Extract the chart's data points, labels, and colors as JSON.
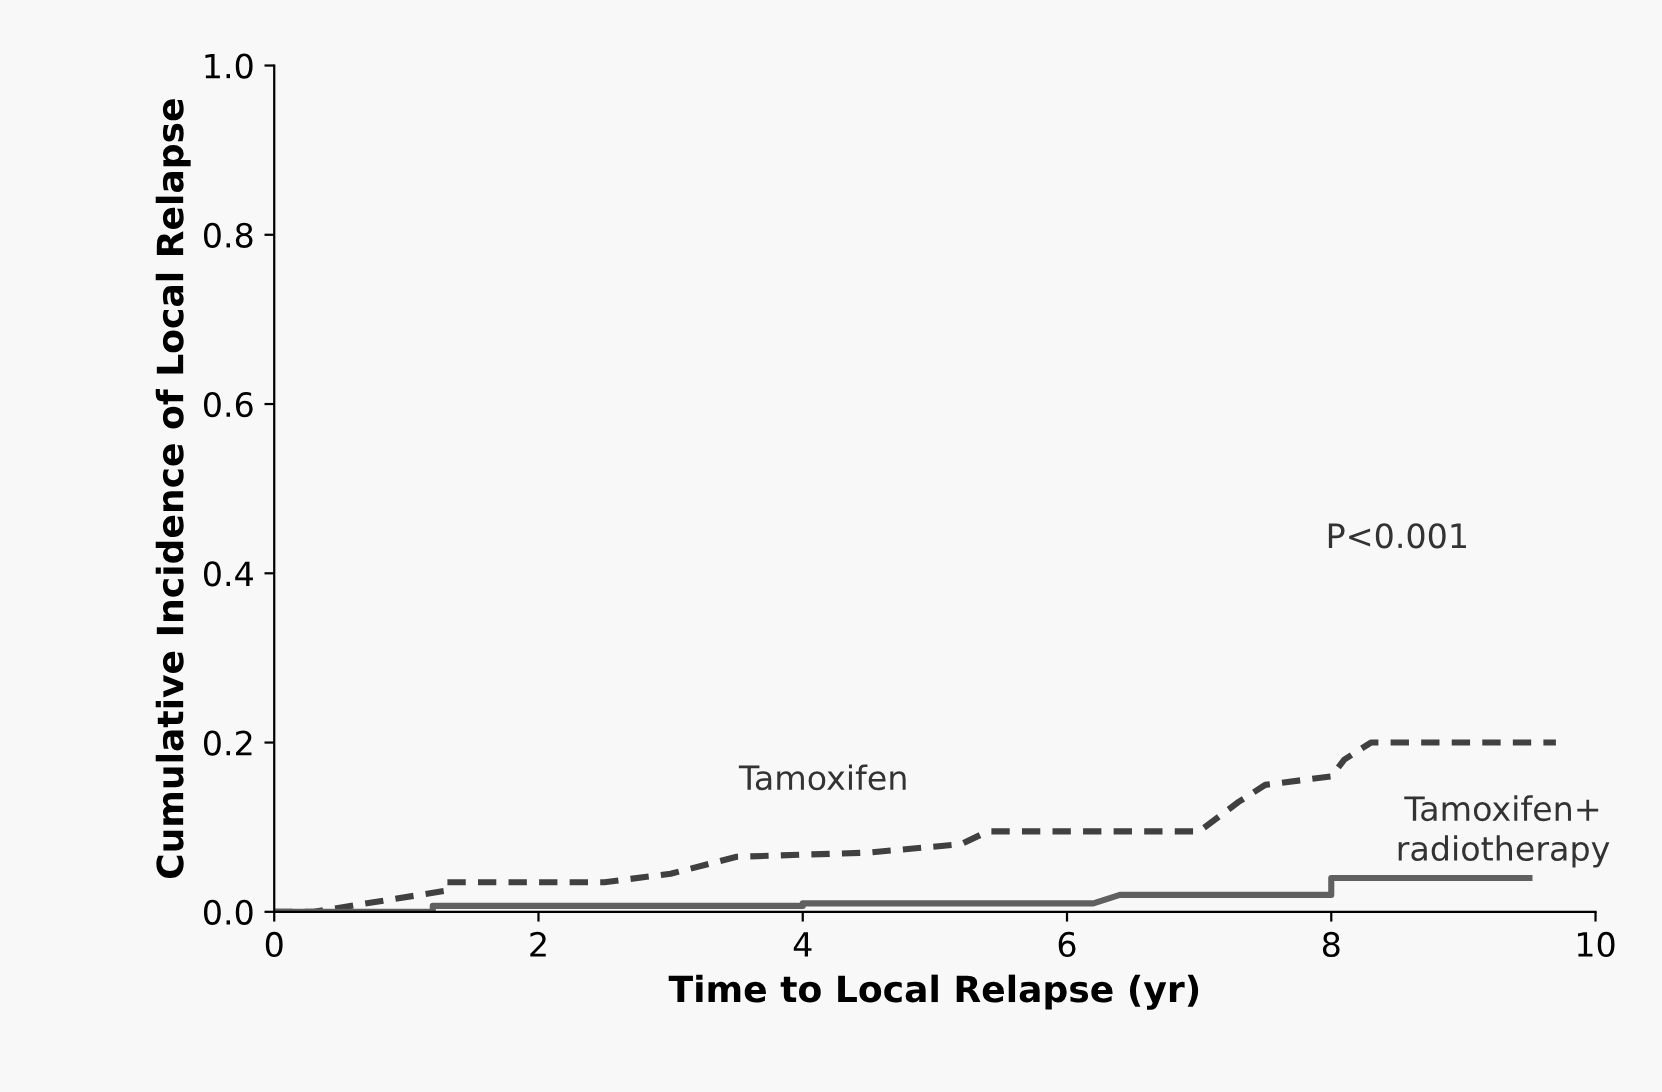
{
  "chart_data": {
    "type": "line",
    "xlabel": "Time to Local Relapse (yr)",
    "ylabel": "Cumulative Incidence of Local Relapse",
    "xlim": [
      0,
      10
    ],
    "ylim": [
      0,
      1.0
    ],
    "xticks": [
      0,
      2,
      4,
      6,
      8,
      10
    ],
    "yticks": [
      {
        "value": 0,
        "label": "0.0"
      },
      {
        "value": 0.2,
        "label": "0.2"
      },
      {
        "value": 0.4,
        "label": "0.4"
      },
      {
        "value": 0.6,
        "label": "0.6"
      },
      {
        "value": 0.8,
        "label": "0.8"
      },
      {
        "value": 1.0,
        "label": "1.0"
      }
    ],
    "grid": false,
    "legend": false,
    "annotations": [
      "P<0.001"
    ],
    "series": [
      {
        "name": "Tamoxifen",
        "color": "#404040",
        "line_style": "dashed",
        "x": [
          0,
          0.3,
          1.3,
          1.3,
          2.5,
          3.0,
          3.5,
          4.5,
          5.2,
          5.4,
          7.0,
          7.3,
          7.5,
          8.0,
          8.1,
          8.3,
          9.7
        ],
        "values": [
          0,
          0,
          0.025,
          0.035,
          0.035,
          0.045,
          0.065,
          0.07,
          0.08,
          0.095,
          0.095,
          0.13,
          0.15,
          0.16,
          0.18,
          0.2,
          0.2
        ]
      },
      {
        "name": "Tamoxifen+ radiotherapy",
        "color": "#606060",
        "line_style": "solid",
        "x": [
          0,
          1.2,
          1.2,
          4.0,
          4.0,
          6.2,
          6.4,
          8.0,
          8.0,
          9.5
        ],
        "values": [
          0,
          0,
          0.007,
          0.007,
          0.01,
          0.01,
          0.02,
          0.02,
          0.04,
          0.04
        ]
      }
    ]
  }
}
